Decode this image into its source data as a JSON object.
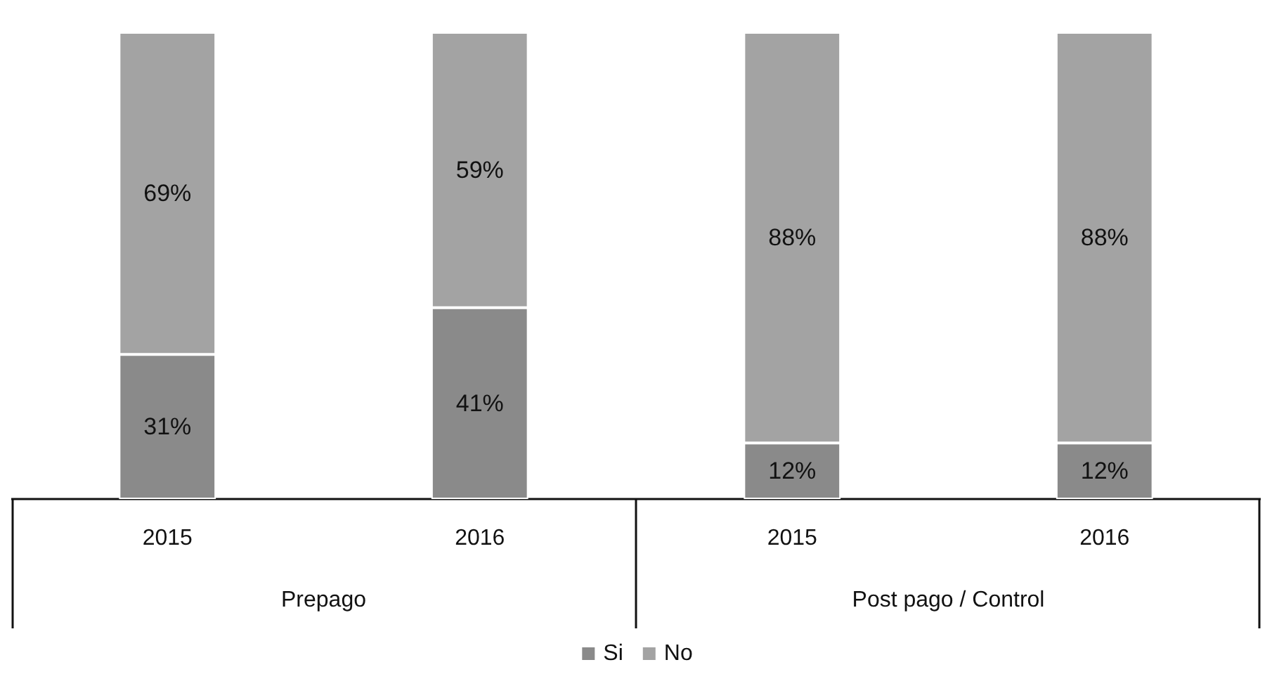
{
  "chart_data": {
    "type": "bar",
    "stacked": true,
    "categories": [
      "2015",
      "2016",
      "2015",
      "2016"
    ],
    "series": [
      {
        "name": "Si",
        "color": "#8a8a8a",
        "values": [
          31,
          41,
          12,
          12
        ],
        "value_labels": [
          "31%",
          "41%",
          "12%",
          "12%"
        ]
      },
      {
        "name": "No",
        "color": "#a3a3a3",
        "values": [
          69,
          59,
          88,
          88
        ],
        "value_labels": [
          "69%",
          "59%",
          "88%",
          "88%"
        ]
      }
    ],
    "ylim": [
      0,
      100
    ],
    "tick_labels": "x",
    "legend": "bottom",
    "annotations": [
      "Prepago",
      "Post pago / Control"
    ]
  }
}
